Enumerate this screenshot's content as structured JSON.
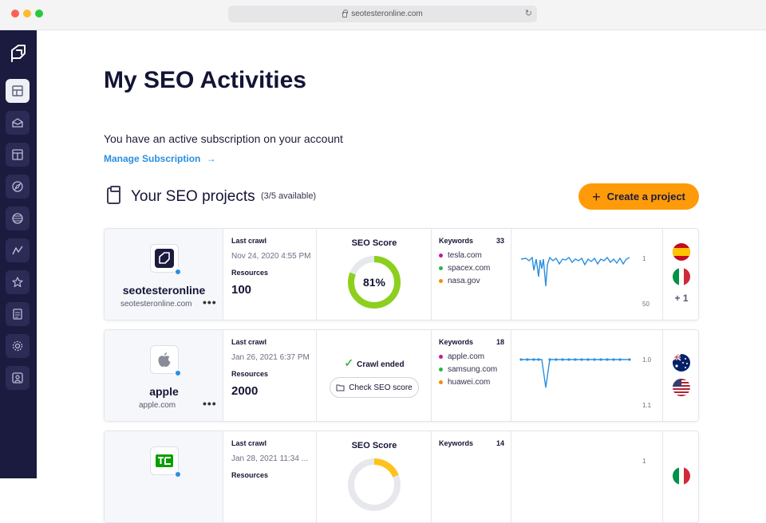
{
  "browser": {
    "url": "seotesteronline.com"
  },
  "sidebar": {
    "items": [
      {
        "name": "dashboard"
      },
      {
        "name": "seo-checker"
      },
      {
        "name": "page-builder"
      },
      {
        "name": "site-explorer"
      },
      {
        "name": "rank-tracker"
      },
      {
        "name": "analytics"
      },
      {
        "name": "favorites"
      },
      {
        "name": "reports"
      },
      {
        "name": "settings"
      },
      {
        "name": "account"
      }
    ]
  },
  "page": {
    "title": "My SEO Activities",
    "subscription_text": "You have an active subscription on your account",
    "manage_link": "Manage Subscription",
    "manage_arrow": "→",
    "projects_title": "Your SEO projects",
    "projects_count": "(3/5 available)",
    "create_button": "Create a project",
    "create_plus": "+"
  },
  "labels": {
    "last_crawl": "Last crawl",
    "resources": "Resources",
    "seo_score": "SEO Score",
    "keywords": "Keywords",
    "more": "•••"
  },
  "projects": [
    {
      "name": "seotesteronline",
      "domain": "seotesteronline.com",
      "last_crawl": "Nov 24, 2020 4:55 PM",
      "resources": "100",
      "seo_score": "81%",
      "score_value": 0.81,
      "score_color": "#8ccf1e",
      "keywords_count": "33",
      "keywords": [
        {
          "text": "tesla.com",
          "color": "#c2189f"
        },
        {
          "text": "spacex.com",
          "color": "#2fb44a"
        },
        {
          "text": "nasa.gov",
          "color": "#f58c0a"
        }
      ],
      "axis_top": "1",
      "axis_bottom": "50",
      "more_flags": "+ 1"
    },
    {
      "name": "apple",
      "domain": "apple.com",
      "last_crawl": "Jan 26, 2021 6:37 PM",
      "resources": "2000",
      "crawl_status": "Crawl ended",
      "check_button": "Check SEO score",
      "keywords_count": "18",
      "keywords": [
        {
          "text": "apple.com",
          "color": "#c2189f"
        },
        {
          "text": "samsung.com",
          "color": "#2fb44a"
        },
        {
          "text": "huawei.com",
          "color": "#f58c0a"
        }
      ],
      "axis_top": "1.0",
      "axis_bottom": "1.1"
    },
    {
      "last_crawl": "Jan 28, 2021 11:34 ...",
      "keywords_count": "14",
      "score_color": "#ffc21a",
      "axis_top": "1"
    }
  ],
  "colors": {
    "accent": "#ff9b08",
    "link": "#2a8fe0",
    "sidebar": "#1b1a3f",
    "chart_line": "#2a8fe0"
  }
}
